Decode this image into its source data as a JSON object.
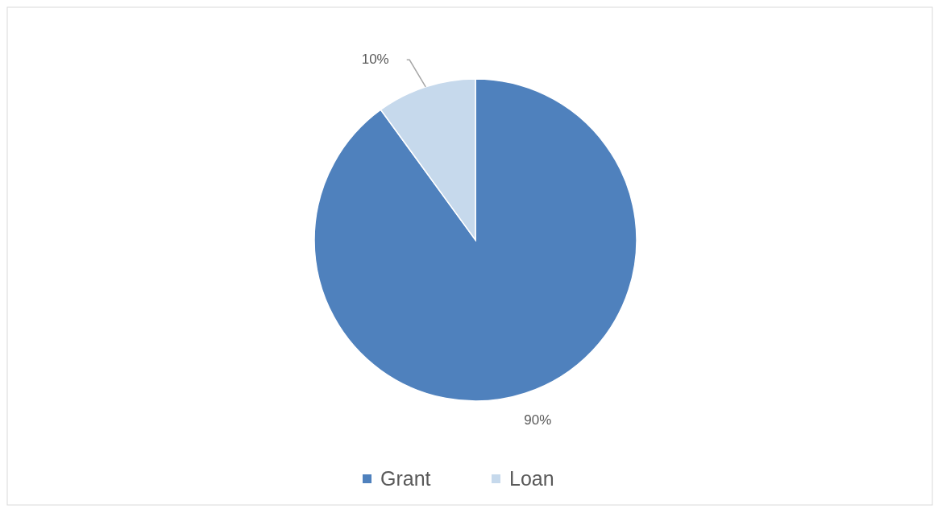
{
  "chart_data": {
    "type": "pie",
    "categories": [
      "Grant",
      "Loan"
    ],
    "values": [
      90,
      10
    ],
    "colors": [
      "#4f81bd",
      "#c6d9ec"
    ],
    "value_labels": [
      "90%",
      "10%"
    ],
    "legend": "bottom"
  }
}
